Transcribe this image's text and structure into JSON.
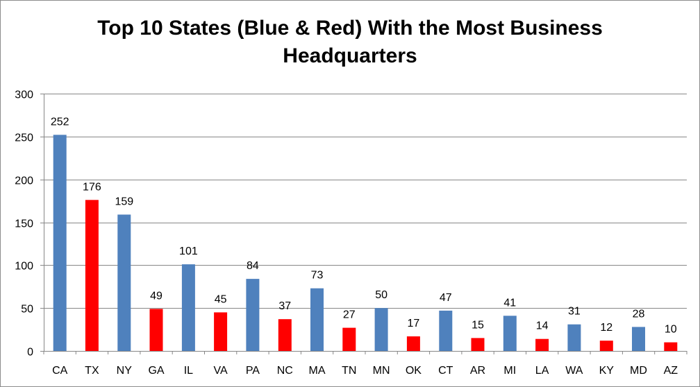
{
  "chart_data": {
    "type": "bar",
    "title_lines": [
      "Top 10 States (Blue & Red) With the Most Business",
      "Headquarters"
    ],
    "categories": [
      "CA",
      "TX",
      "NY",
      "GA",
      "IL",
      "VA",
      "PA",
      "NC",
      "MA",
      "TN",
      "MN",
      "OK",
      "CT",
      "AR",
      "MI",
      "LA",
      "WA",
      "KY",
      "MD",
      "AZ"
    ],
    "values": [
      252,
      176,
      159,
      49,
      101,
      45,
      84,
      37,
      73,
      27,
      50,
      17,
      47,
      15,
      41,
      14,
      31,
      12,
      28,
      10
    ],
    "bar_colors": [
      "blue",
      "red",
      "blue",
      "red",
      "blue",
      "red",
      "blue",
      "red",
      "blue",
      "red",
      "blue",
      "red",
      "blue",
      "red",
      "blue",
      "red",
      "blue",
      "red",
      "blue",
      "red"
    ],
    "palette": {
      "blue": "#4f81bd",
      "red": "#ff0000",
      "grid": "#868686",
      "axis": "#868686"
    },
    "ylim": [
      0,
      300
    ],
    "yticks": [
      0,
      50,
      100,
      150,
      200,
      250,
      300
    ],
    "grid": true,
    "legend": "none",
    "data_labels": true
  }
}
